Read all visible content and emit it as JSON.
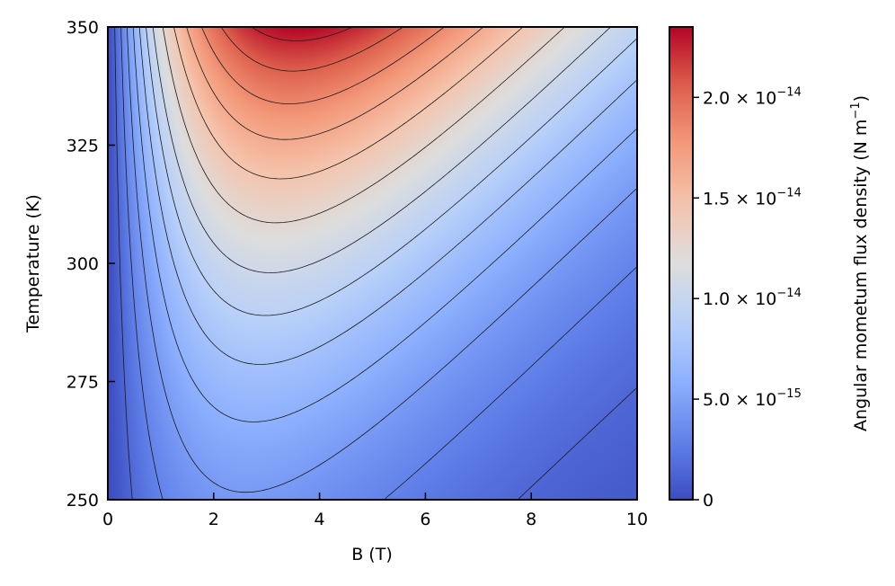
{
  "chart_data": {
    "type": "heatmap",
    "title": "",
    "xlabel": "B (T)",
    "ylabel": "Temperature (K)",
    "xlim": [
      0,
      10
    ],
    "ylim": [
      250,
      350
    ],
    "x_ticks": [
      0,
      2,
      4,
      6,
      8,
      10
    ],
    "x_tick_labels": [
      "0",
      "2",
      "4",
      "6",
      "8",
      "10"
    ],
    "y_ticks": [
      250,
      275,
      300,
      325,
      350
    ],
    "y_tick_labels": [
      "250",
      "275",
      "300",
      "325",
      "350"
    ],
    "colormap": "coolwarm",
    "colorbar": {
      "label_main": "Angular mometum flux density (N m",
      "label_sup": "−1",
      "label_close": ")",
      "range": [
        0,
        2.35e-14
      ],
      "ticks": [
        0,
        5e-15,
        1e-14,
        1.5e-14,
        2e-14
      ],
      "tick_labels": [
        {
          "main": "0",
          "sup": ""
        },
        {
          "main": "5.0 × 10",
          "sup": "−15"
        },
        {
          "main": "1.0 × 10",
          "sup": "−14"
        },
        {
          "main": "1.5 × 10",
          "sup": "−14"
        },
        {
          "main": "2.0 × 10",
          "sup": "−14"
        }
      ]
    },
    "contour_levels": [
      1.5e-15,
      3e-15,
      4.5e-15,
      6e-15,
      7.5e-15,
      9e-15,
      1.05e-14,
      1.25e-14,
      1.45e-14,
      1.65e-14,
      1.85e-14,
      2.05e-14,
      2.25e-14
    ],
    "peak": {
      "B": 3.6,
      "T": 350,
      "value": 2.35e-14
    }
  }
}
